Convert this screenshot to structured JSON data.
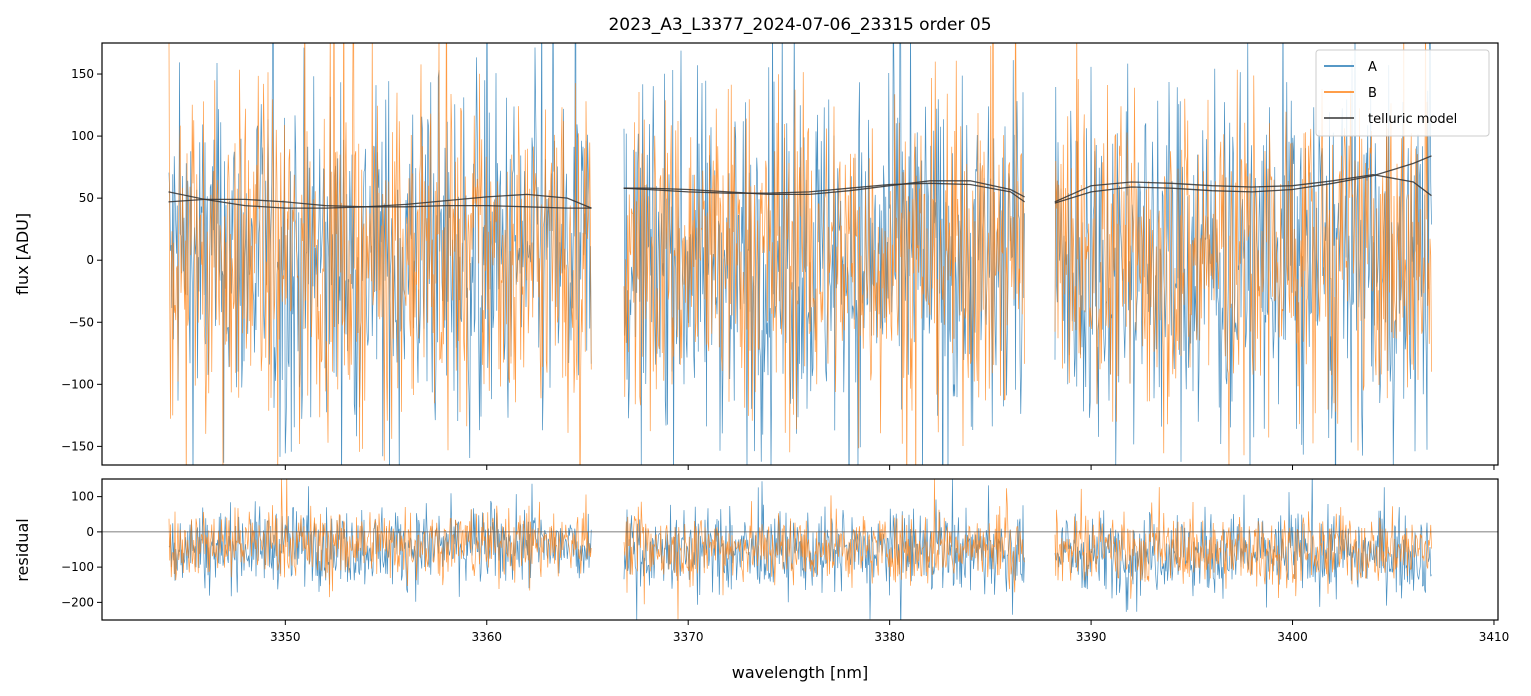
{
  "chart_data": [
    {
      "type": "line",
      "panel": "main",
      "title": "2023_A3_L3377_2024-07-06_23315  order 05",
      "ylabel": "flux [ADU]",
      "xlim": [
        3340.9,
        3410.2
      ],
      "ylim": [
        -165,
        175
      ],
      "x_ticks": [
        3350,
        3360,
        3370,
        3380,
        3390,
        3400,
        3410
      ],
      "y_ticks": [
        -150,
        -100,
        -50,
        0,
        50,
        100,
        150
      ],
      "legend": {
        "placement": "top-right",
        "entries": [
          {
            "label": "A",
            "color": "#1f77b4"
          },
          {
            "label": "B",
            "color": "#ff7f0e"
          },
          {
            "label": "telluric model",
            "color": "#333333"
          }
        ]
      },
      "noise_segments": [
        {
          "x_start": 3344.2,
          "x_end": 3365.2,
          "A": {
            "center": 0,
            "spread": 120
          },
          "B": {
            "center": 5,
            "spread": 110
          }
        },
        {
          "x_start": 3366.8,
          "x_end": 3386.7,
          "A": {
            "center": 0,
            "spread": 120
          },
          "B": {
            "center": 5,
            "spread": 110
          }
        },
        {
          "x_start": 3388.2,
          "x_end": 3406.9,
          "A": {
            "center": 0,
            "spread": 120
          },
          "B": {
            "center": 5,
            "spread": 110
          }
        }
      ],
      "series": [
        {
          "series": "telluric-1",
          "color": "#333333",
          "x": [
            3344.2,
            3346,
            3348,
            3350,
            3352,
            3354,
            3356,
            3358,
            3360,
            3362,
            3364,
            3365.2
          ],
          "y": [
            55,
            49,
            44,
            42,
            42,
            43,
            45,
            48,
            51,
            53,
            50,
            42
          ]
        },
        {
          "series": "telluric-2",
          "color": "#333333",
          "x": [
            3344.2,
            3346,
            3348,
            3350,
            3352,
            3354,
            3356,
            3358,
            3360,
            3362,
            3364,
            3365.2
          ],
          "y": [
            47,
            49,
            49,
            47,
            44,
            43,
            43,
            44,
            44,
            43,
            42,
            42
          ]
        },
        {
          "series": "telluric-3",
          "color": "#333333",
          "x": [
            3366.8,
            3368,
            3370,
            3372,
            3374,
            3376,
            3378,
            3380,
            3382,
            3384,
            3386,
            3386.7
          ],
          "y": [
            58,
            57,
            55,
            54,
            54,
            55,
            58,
            61,
            62,
            61,
            55,
            47
          ]
        },
        {
          "series": "telluric-4",
          "color": "#333333",
          "x": [
            3366.8,
            3368,
            3370,
            3372,
            3374,
            3376,
            3378,
            3380,
            3382,
            3384,
            3386,
            3386.7
          ],
          "y": [
            58,
            58,
            57,
            55,
            53,
            53,
            56,
            60,
            64,
            64,
            57,
            51
          ]
        },
        {
          "series": "telluric-5",
          "color": "#333333",
          "x": [
            3388.2,
            3390,
            3392,
            3394,
            3396,
            3398,
            3400,
            3402,
            3404,
            3406,
            3406.9
          ],
          "y": [
            46,
            55,
            59,
            58,
            56,
            55,
            57,
            62,
            68,
            78,
            84
          ]
        },
        {
          "series": "telluric-6",
          "color": "#333333",
          "x": [
            3388.2,
            3390,
            3392,
            3394,
            3396,
            3398,
            3400,
            3402,
            3404,
            3406,
            3406.9
          ],
          "y": [
            47,
            60,
            63,
            62,
            60,
            59,
            60,
            64,
            69,
            63,
            52
          ]
        }
      ]
    },
    {
      "type": "line",
      "panel": "residual",
      "xlabel": "wavelength [nm]",
      "ylabel": "residual",
      "xlim": [
        3340.9,
        3410.2
      ],
      "ylim": [
        -250,
        150
      ],
      "x_ticks": [
        3350,
        3360,
        3370,
        3380,
        3390,
        3400,
        3410
      ],
      "y_ticks": [
        -200,
        -100,
        0,
        100
      ],
      "zero_line": 0,
      "noise_segments": [
        {
          "x_start": 3344.2,
          "x_end": 3365.2,
          "A": {
            "center": -40,
            "spread": 95
          },
          "B": {
            "center": -30,
            "spread": 85
          }
        },
        {
          "x_start": 3366.8,
          "x_end": 3386.7,
          "A": {
            "center": -55,
            "spread": 95
          },
          "B": {
            "center": -45,
            "spread": 85
          }
        },
        {
          "x_start": 3388.2,
          "x_end": 3406.9,
          "A": {
            "center": -60,
            "spread": 95
          },
          "B": {
            "center": -50,
            "spread": 85
          }
        }
      ]
    }
  ]
}
